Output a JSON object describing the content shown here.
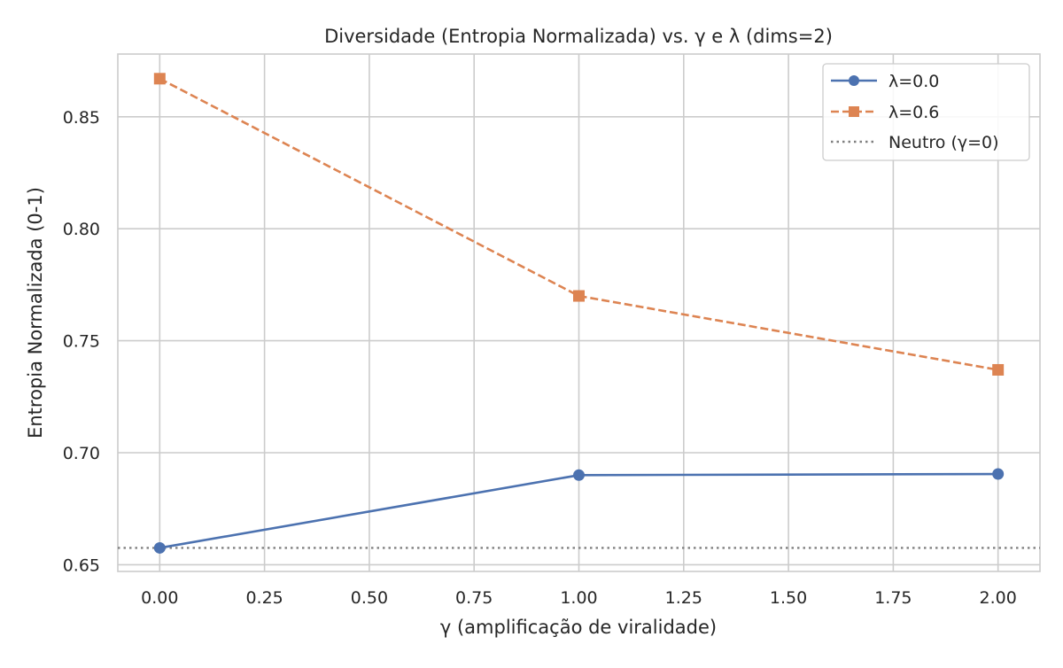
{
  "chart_data": {
    "type": "line",
    "title": "Diversidade (Entropia Normalizada) vs. γ e λ (dims=2)",
    "xlabel": "γ (amplificação de viralidade)",
    "ylabel": "Entropia Normalizada (0-1)",
    "xlim": [
      -0.1,
      2.1
    ],
    "ylim": [
      0.647,
      0.878
    ],
    "xticks": [
      0.0,
      0.25,
      0.5,
      0.75,
      1.0,
      1.25,
      1.5,
      1.75,
      2.0
    ],
    "xtick_labels": [
      "0.00",
      "0.25",
      "0.50",
      "0.75",
      "1.00",
      "1.25",
      "1.50",
      "1.75",
      "2.00"
    ],
    "yticks": [
      0.65,
      0.7,
      0.75,
      0.8,
      0.85
    ],
    "ytick_labels": [
      "0.65",
      "0.70",
      "0.75",
      "0.80",
      "0.85"
    ],
    "grid": true,
    "legend_position": "top-right",
    "series": [
      {
        "name": "λ=0.0",
        "x": [
          0.0,
          1.0,
          2.0
        ],
        "y": [
          0.6575,
          0.69,
          0.6905
        ],
        "color": "#4c72b0",
        "linestyle": "solid",
        "marker": "circle"
      },
      {
        "name": "λ=0.6",
        "x": [
          0.0,
          1.0,
          2.0
        ],
        "y": [
          0.867,
          0.77,
          0.737
        ],
        "color": "#dd8452",
        "linestyle": "dashed",
        "marker": "square"
      }
    ],
    "reference_line": {
      "name": "Neutro (γ=0)",
      "y": 0.6575,
      "color": "#808080",
      "linestyle": "dotted"
    }
  }
}
